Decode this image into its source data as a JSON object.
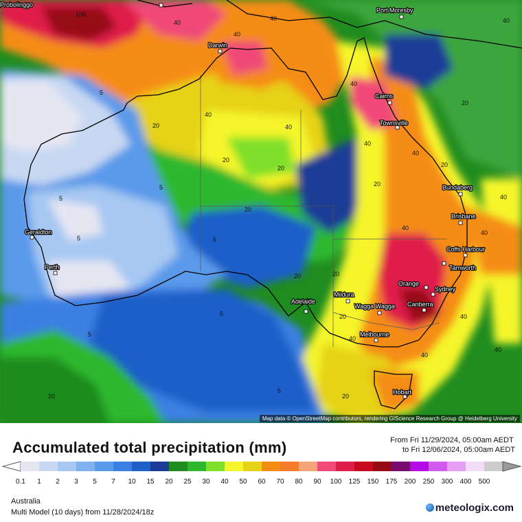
{
  "map": {
    "cities": [
      {
        "name": "Probolinggo"
      },
      {
        "name": "Port Moresby"
      },
      {
        "name": "Darwin"
      },
      {
        "name": "Cairns"
      },
      {
        "name": "Townsville"
      },
      {
        "name": "Bundaberg"
      },
      {
        "name": "Brisbane"
      },
      {
        "name": "Coffs Harbour"
      },
      {
        "name": "Tamworth"
      },
      {
        "name": "Geraldton"
      },
      {
        "name": "Perth"
      },
      {
        "name": "Orange"
      },
      {
        "name": "Sydney"
      },
      {
        "name": "Canberra"
      },
      {
        "name": "Wagga Wagga"
      },
      {
        "name": "Mildura"
      },
      {
        "name": "Adelaide"
      },
      {
        "name": "Melbourne"
      },
      {
        "name": "Hobart"
      }
    ],
    "contour_labels": [
      "100",
      "40",
      "40",
      "40",
      "40",
      "40",
      "20",
      "20",
      "20",
      "20",
      "5",
      "5",
      "5",
      "5",
      "5",
      "5",
      "20",
      "20",
      "40",
      "40",
      "40",
      "40",
      "20",
      "20",
      "40",
      "40",
      "20",
      "40",
      "40",
      "40",
      "20",
      "5",
      "5",
      "20",
      "20",
      "40",
      "40"
    ],
    "attribution": "Map data © OpenStreetMap contributors, rendering GIScience Research Group @ Heidelberg University"
  },
  "header": {
    "title": "Accumulated total precipitation (mm)",
    "period_from": "From Fri 11/29/2024, 05:00am AEDT",
    "period_to": "to Fri 12/06/2024, 05:00am AEDT"
  },
  "legend": {
    "bins": [
      {
        "label": "0.1",
        "color": "#e6e6f2"
      },
      {
        "label": "1",
        "color": "#c8d8f2"
      },
      {
        "label": "2",
        "color": "#a6c8f2"
      },
      {
        "label": "3",
        "color": "#7fb2ee"
      },
      {
        "label": "5",
        "color": "#5a9aea"
      },
      {
        "label": "7",
        "color": "#3a80e2"
      },
      {
        "label": "10",
        "color": "#1f5fc8"
      },
      {
        "label": "15",
        "color": "#1a3c96"
      },
      {
        "label": "20",
        "color": "#1f8c1f"
      },
      {
        "label": "25",
        "color": "#2eb82e"
      },
      {
        "label": "30",
        "color": "#7ee02a"
      },
      {
        "label": "40",
        "color": "#f5f529"
      },
      {
        "label": "50",
        "color": "#e6d218"
      },
      {
        "label": "60",
        "color": "#f58c14"
      },
      {
        "label": "70",
        "color": "#f57a2a"
      },
      {
        "label": "80",
        "color": "#f5a478"
      },
      {
        "label": "90",
        "color": "#f04a78"
      },
      {
        "label": "100",
        "color": "#e01e4a"
      },
      {
        "label": "125",
        "color": "#c80a1e"
      },
      {
        "label": "150",
        "color": "#960a14"
      },
      {
        "label": "175",
        "color": "#7a0a6e"
      },
      {
        "label": "200",
        "color": "#b40ae6"
      },
      {
        "label": "250",
        "color": "#d25af0"
      },
      {
        "label": "300",
        "color": "#e69ef5"
      },
      {
        "label": "400",
        "color": "#f2dcf8"
      },
      {
        "label": "500",
        "color": "#cccccc"
      }
    ]
  },
  "footer": {
    "region": "Australia",
    "model": "Multi Model (10 days) from  11/28/2024/18z",
    "brand": "meteologix.com"
  }
}
